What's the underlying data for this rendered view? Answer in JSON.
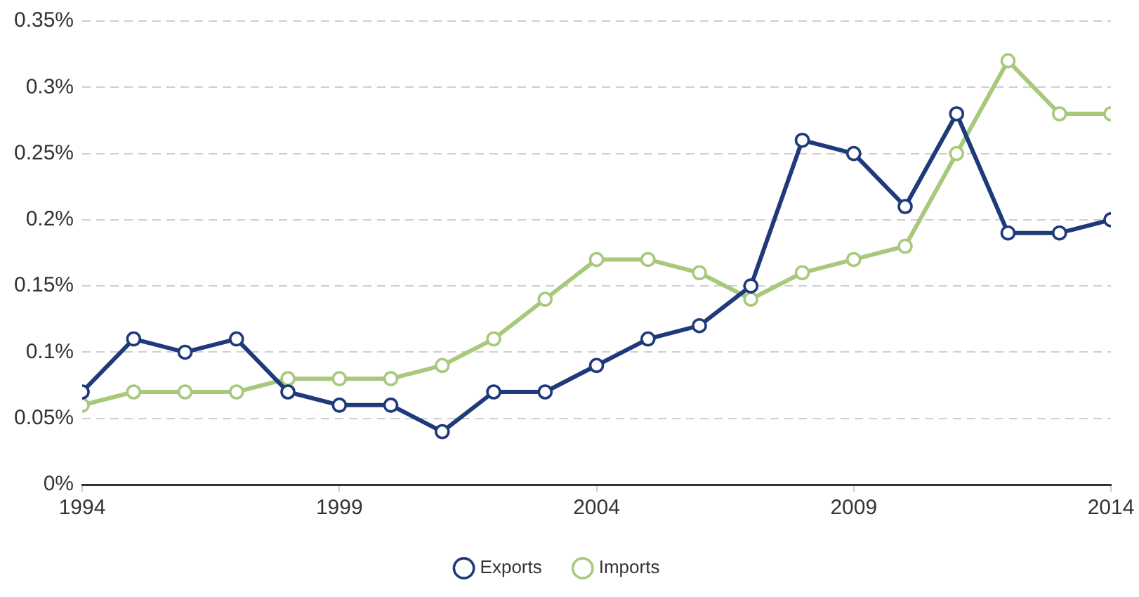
{
  "chart_data": {
    "type": "line",
    "x": [
      1994,
      1995,
      1996,
      1997,
      1998,
      1999,
      2000,
      2001,
      2002,
      2003,
      2004,
      2005,
      2006,
      2007,
      2008,
      2009,
      2010,
      2011,
      2012,
      2013,
      2014
    ],
    "series": [
      {
        "name": "Exports",
        "color": "#1f3a7a",
        "values": [
          0.07,
          0.11,
          0.1,
          0.11,
          0.07,
          0.06,
          0.06,
          0.04,
          0.07,
          0.07,
          0.09,
          0.11,
          0.12,
          0.15,
          0.26,
          0.25,
          0.21,
          0.28,
          0.19,
          0.19,
          0.2
        ]
      },
      {
        "name": "Imports",
        "color": "#a8c97c",
        "values": [
          0.06,
          0.07,
          0.07,
          0.07,
          0.08,
          0.08,
          0.08,
          0.09,
          0.11,
          0.14,
          0.17,
          0.17,
          0.16,
          0.14,
          0.16,
          0.17,
          0.18,
          0.25,
          0.32,
          0.28,
          0.28
        ]
      }
    ],
    "xlim": [
      1994,
      2014
    ],
    "xticks": [
      1994,
      1999,
      2004,
      2009,
      2014
    ],
    "ylim": [
      0,
      0.35
    ],
    "yticks": [
      {
        "value": 0,
        "label": "0%"
      },
      {
        "value": 0.05,
        "label": "0.05%"
      },
      {
        "value": 0.1,
        "label": "0.1%"
      },
      {
        "value": 0.15,
        "label": "0.15%"
      },
      {
        "value": 0.2,
        "label": "0.2%"
      },
      {
        "value": 0.25,
        "label": "0.25%"
      },
      {
        "value": 0.3,
        "label": "0.3%"
      },
      {
        "value": 0.35,
        "label": "0.35%"
      }
    ],
    "grid": "y",
    "legend": "bottom",
    "marker": "circle",
    "line_style": "solid"
  }
}
